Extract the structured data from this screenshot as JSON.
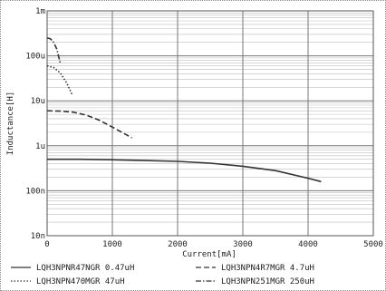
{
  "chart_data": {
    "type": "line",
    "title": "",
    "xlabel": "Current[mA]",
    "ylabel": "Inductance[H]",
    "xlim": [
      0,
      5000
    ],
    "ylim": [
      1e-08,
      0.001
    ],
    "yscale": "log",
    "x_ticks": [
      {
        "value": 0,
        "label": "0"
      },
      {
        "value": 1000,
        "label": "1000"
      },
      {
        "value": 2000,
        "label": "2000"
      },
      {
        "value": 3000,
        "label": "3000"
      },
      {
        "value": 4000,
        "label": "4000"
      },
      {
        "value": 5000,
        "label": "5000"
      }
    ],
    "y_ticks": [
      {
        "value": 1e-08,
        "label": "10n"
      },
      {
        "value": 1e-07,
        "label": "100n"
      },
      {
        "value": 1e-06,
        "label": "1u"
      },
      {
        "value": 1e-05,
        "label": "10u"
      },
      {
        "value": 0.0001,
        "label": "100u"
      },
      {
        "value": 0.001,
        "label": "1m"
      }
    ],
    "grid": true,
    "legend_position": "bottom",
    "series": [
      {
        "name": "LQH3NPNR47NGR 0.47uH",
        "style": "solid",
        "color": "#333333",
        "x": [
          0,
          500,
          1000,
          1500,
          2000,
          2500,
          3000,
          3500,
          4000,
          4200
        ],
        "y": [
          5e-07,
          5e-07,
          4.9e-07,
          4.7e-07,
          4.5e-07,
          4.1e-07,
          3.5e-07,
          2.8e-07,
          1.9e-07,
          1.6e-07
        ]
      },
      {
        "name": "LQH3NPN4R7MGR 4.7uH",
        "style": "dashed",
        "color": "#333333",
        "x": [
          0,
          200,
          400,
          600,
          800,
          1000,
          1200,
          1300
        ],
        "y": [
          6e-06,
          5.9e-06,
          5.6e-06,
          4.8e-06,
          3.7e-06,
          2.6e-06,
          1.8e-06,
          1.5e-06
        ]
      },
      {
        "name": "LQH3NPN470MGR 47uH",
        "style": "dotted",
        "color": "#333333",
        "x": [
          0,
          100,
          200,
          300,
          380
        ],
        "y": [
          6e-05,
          5.5e-05,
          4.2e-05,
          2.5e-05,
          1.4e-05
        ]
      },
      {
        "name": "LQH3NPN251MGR 250uH",
        "style": "dashdot",
        "color": "#333333",
        "x": [
          0,
          50,
          100,
          150,
          200
        ],
        "y": [
          0.00025,
          0.00024,
          0.0002,
          0.00014,
          7e-05
        ]
      }
    ]
  }
}
